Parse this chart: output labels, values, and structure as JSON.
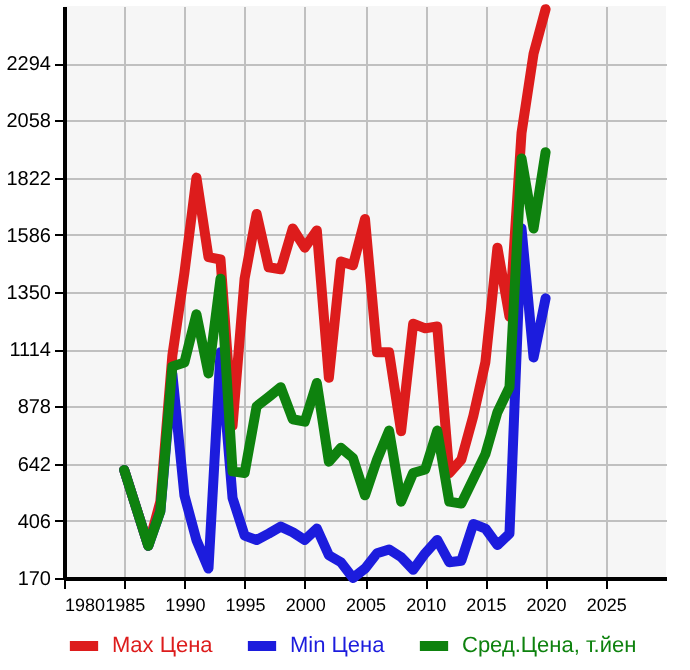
{
  "chart_data": {
    "type": "line",
    "x": [
      1985,
      1987,
      1988,
      1989,
      1990,
      1991,
      1992,
      1993,
      1994,
      1995,
      1996,
      1997,
      1998,
      1999,
      2000,
      2001,
      2002,
      2003,
      2004,
      2005,
      2006,
      2007,
      2008,
      2009,
      2010,
      2011,
      2012,
      2013,
      2014,
      2015,
      2016,
      2017,
      2018,
      2019,
      2020
    ],
    "series": [
      {
        "name": "Max Цена",
        "color": "#dd1c1c",
        "values": [
          616,
          303,
          485,
          1088,
          1429,
          1822,
          1494,
          1484,
          799,
          1405,
          1672,
          1452,
          1444,
          1612,
          1533,
          1604,
          996,
          1476,
          1460,
          1651,
          1101,
          1101,
          776,
          1219,
          1200,
          1208,
          603,
          658,
          839,
          1061,
          1533,
          1248,
          2006,
          2333,
          2517
        ]
      },
      {
        "name": "Min Цена",
        "color": "#1c1cdd",
        "values": [
          616,
          303,
          445,
          1012,
          511,
          327,
          209,
          1101,
          500,
          345,
          327,
          353,
          382,
          359,
          327,
          374,
          264,
          235,
          170,
          209,
          272,
          288,
          256,
          204,
          272,
          327,
          235,
          241,
          393,
          374,
          306,
          353,
          1612,
          1080,
          1324
        ]
      },
      {
        "name": "Сред.Цена, т.йен",
        "color": "#0e820e",
        "values": [
          616,
          303,
          445,
          1043,
          1059,
          1258,
          1014,
          1405,
          610,
          603,
          878,
          917,
          957,
          825,
          815,
          975,
          650,
          707,
          665,
          511,
          658,
          778,
          485,
          603,
          618,
          778,
          485,
          477,
          579,
          681,
          854,
          957,
          1901,
          1612,
          1927
        ]
      }
    ],
    "xlim": [
      1980,
      2030
    ],
    "xticks": [
      1980,
      1985,
      1990,
      1995,
      2000,
      2005,
      2010,
      2015,
      2020,
      2025
    ],
    "ylim": [
      170,
      2530
    ],
    "yticks": [
      170,
      406,
      642,
      878,
      1114,
      1350,
      1586,
      1822,
      2058,
      2294
    ],
    "grid": true,
    "legend": "bottom"
  }
}
